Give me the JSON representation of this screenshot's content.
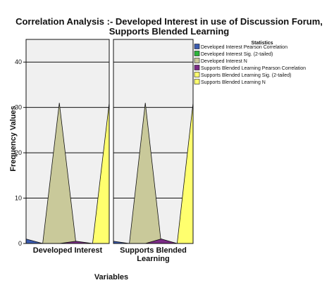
{
  "chart_data": {
    "type": "area",
    "title_lines": [
      "Correlation Analysis :- Developed Interest in use of Discussion Forum,",
      "Supports Blended Learning"
    ],
    "xlabel": "Variables",
    "ylabel": "Frequency Values",
    "ylim": [
      0,
      45
    ],
    "yticks": [
      0,
      10,
      20,
      30,
      40
    ],
    "grid": true,
    "legend_placement": "right",
    "legend_title": "Statistics",
    "panels": [
      {
        "label_lines": [
          "Developed Interest"
        ]
      },
      {
        "label_lines": [
          "Supports Blended",
          "Learning"
        ]
      }
    ],
    "series": [
      {
        "name": "Developed Interest Pearson Correlation",
        "color": "#3b5bb0",
        "values": [
          1,
          0.5
        ]
      },
      {
        "name": "Developed Interest Sig. (2-tailed)",
        "color": "#2cb53a",
        "values": [
          0,
          0
        ]
      },
      {
        "name": "Developed Interest N",
        "color": "#c9c99a",
        "values": [
          31,
          31
        ]
      },
      {
        "name": "Supports Blended Learning Pearson Correlation",
        "color": "#7b2a86",
        "values": [
          0.5,
          1
        ]
      },
      {
        "name": "Supports Blended Learning Sig. (2-tailed)",
        "color": "#ffff6e",
        "values": [
          0,
          0
        ]
      },
      {
        "name": "Supports Blended Learning N",
        "color": "#ffff6e",
        "values": [
          31,
          31
        ]
      }
    ]
  }
}
